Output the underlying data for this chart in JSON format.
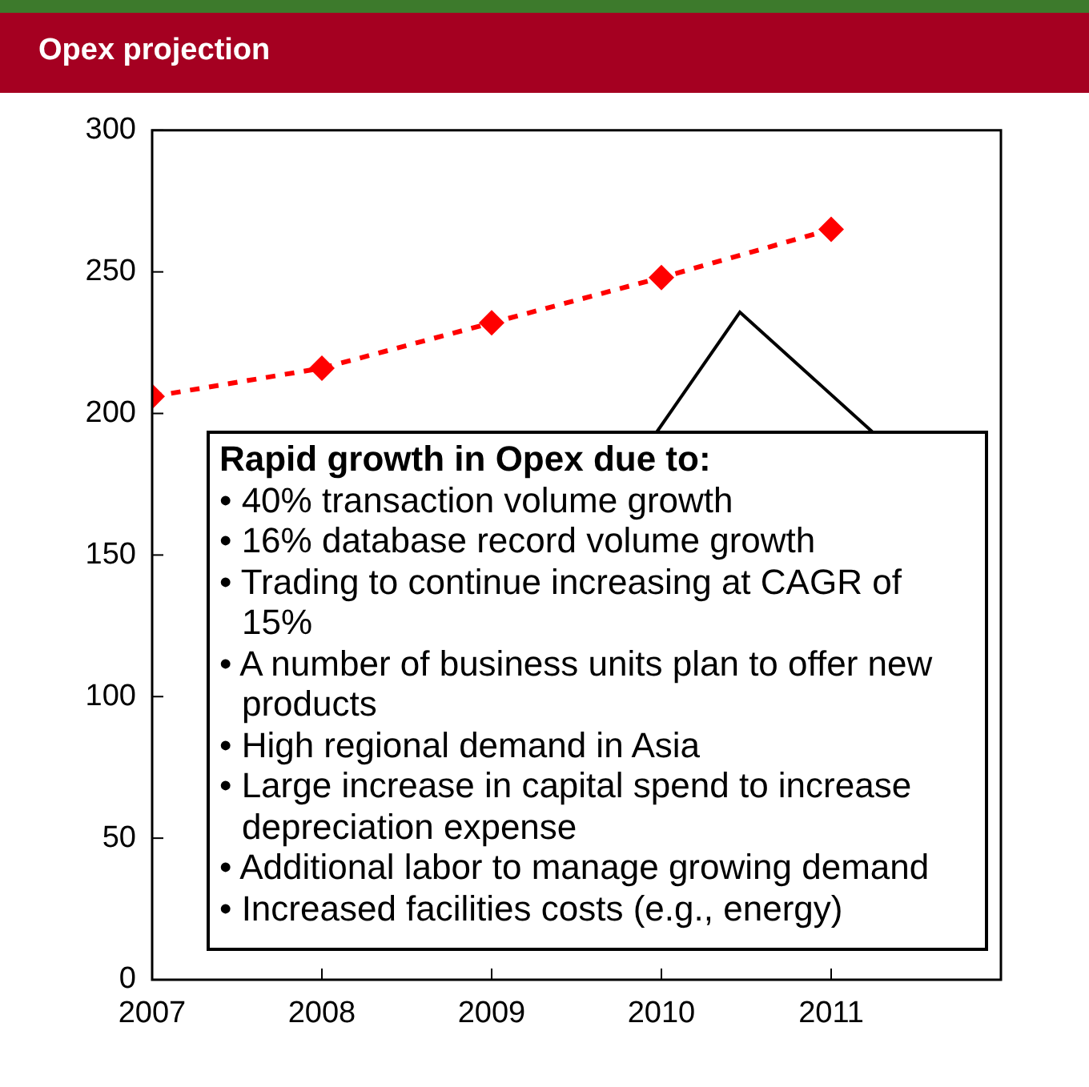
{
  "chart_data": {
    "type": "line",
    "title": "Opex projection",
    "x": [
      2007,
      2008,
      2009,
      2010,
      2011
    ],
    "series": [
      {
        "color": "#ff0000",
        "values": [
          206,
          216,
          232,
          248,
          265
        ]
      }
    ],
    "xlim": [
      2007,
      2012
    ],
    "xticks": [
      2007,
      2008,
      2009,
      2010,
      2011
    ],
    "ylim": [
      0,
      300
    ],
    "yticks": [
      0,
      50,
      100,
      150,
      200,
      250,
      300
    ],
    "marker": "diamond",
    "line_style": "dashed",
    "legend": false,
    "annotations": [
      "Rapid growth in Opex due to:",
      "• 40% transaction volume growth",
      "• 16% database record volume growth",
      "• Trading to continue increasing at CAGR of 15%",
      "• A number of business units plan to offer new products",
      "• High regional demand in Asia",
      "• Large increase in capital spend to increase depreciation expense",
      "• Additional labor to manage growing demand",
      "• Increased facilities costs (e.g., energy)"
    ]
  }
}
